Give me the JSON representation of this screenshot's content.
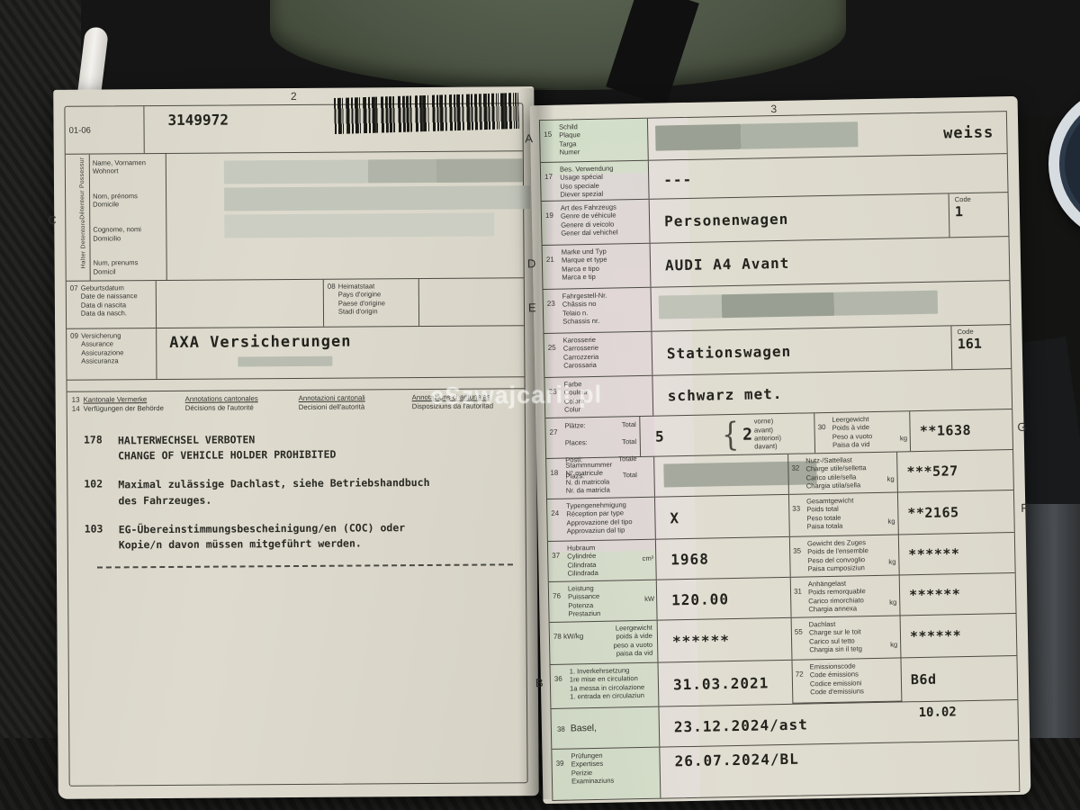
{
  "scene": {
    "paper_color": "#dcd9cc",
    "leather_color": "#4d5646",
    "redaction_color": "#a9ada1",
    "background_color": "#141413"
  },
  "watermark_text": "eSzwajcarii.pl",
  "left_page": {
    "page_number": "2",
    "header": {
      "code_range": "01-06",
      "serial": "3149972"
    },
    "holder": {
      "marker": "C",
      "vertical_top": "Détenteur  Possessur",
      "vertical_bottom": "Halter  Detentore",
      "labels": [
        [
          "Name, Vornamen",
          "Wohnort"
        ],
        [
          "Nom, prénoms",
          "Domicile"
        ],
        [
          "Cognome, nomi",
          "Domicilio"
        ],
        [
          "Num, prenums",
          "Domicil"
        ]
      ]
    },
    "field07": {
      "num": "07",
      "labels": [
        "Geburtsdatum",
        "Date de naissance",
        "Data di nascita",
        "Data da nasch."
      ]
    },
    "field08": {
      "num": "08",
      "labels": [
        "Heimatstaat",
        "Pays d'origine",
        "Paese d'origine",
        "Stadi d'origin"
      ]
    },
    "field09": {
      "num": "09",
      "labels": [
        "Versicherung",
        "Assurance",
        "Assicurazione",
        "Assicuranza"
      ],
      "value": "AXA Versicherungen"
    },
    "cantonal": {
      "col1": {
        "row1_num": "13",
        "row1_text": "Kantonale Vermerke",
        "row2_num": "14",
        "row2_text": "Verfügungen der Behörde"
      },
      "col2": [
        "Annotations cantonales",
        "Décisions de l'autorité"
      ],
      "col3": [
        "Annotazioni cantonali",
        "Decisioni dell'autorità"
      ],
      "col4": [
        "Annotaziuns chantunalas",
        "Disposiziuns da l'autoritad"
      ]
    },
    "notes": [
      {
        "num": "178",
        "lines": [
          "HALTERWECHSEL VERBOTEN",
          "CHANGE OF VEHICLE HOLDER PROHIBITED"
        ]
      },
      {
        "num": "102",
        "lines": [
          "Maximal zulässige Dachlast, siehe Betriebshandbuch",
          "des Fahrzeuges."
        ]
      },
      {
        "num": "103",
        "lines": [
          "EG-Übereinstimmungsbescheinigung/en (COC) oder",
          "Kopie/n davon müssen mitgeführt werden."
        ]
      }
    ]
  },
  "right_page": {
    "page_number": "3",
    "rows": {
      "r15": {
        "marker": "A",
        "num": "15",
        "labels": [
          "Schild",
          "Plaque",
          "Targa",
          "Numer"
        ],
        "value": "weiss"
      },
      "r17": {
        "num": "17",
        "labels": [
          "Bes. Verwendung",
          "Usage spécial",
          "Uso speciale",
          "Diever spezial"
        ],
        "value": "---"
      },
      "r19": {
        "num": "19",
        "labels": [
          "Art des Fahrzeugs",
          "Genre de véhicule",
          "Genere di veicolo",
          "Gener dal vehichel"
        ],
        "value": "Personenwagen",
        "code_label": "Code",
        "code": "1"
      },
      "r21": {
        "marker": "D",
        "num": "21",
        "labels": [
          "Marke und Typ",
          "Marque et type",
          "Marca e tipo",
          "Marca e tip"
        ],
        "value": "AUDI A4 Avant"
      },
      "r23": {
        "marker": "E",
        "num": "23",
        "labels": [
          "Fahrgestell-Nr.",
          "Châssis no",
          "Telaio n.",
          "Schassis nr."
        ]
      },
      "r25": {
        "num": "25",
        "labels": [
          "Karosserie",
          "Carrosserie",
          "Carrozzeria",
          "Carossaria"
        ],
        "value": "Stationswagen",
        "code_label": "Code",
        "code": "161"
      },
      "r26": {
        "num": "26",
        "labels": [
          "Farbe",
          "Couleur",
          "Colore",
          "Colur"
        ],
        "value": "schwarz met."
      },
      "r27": {
        "marker_right": "G",
        "num": "27",
        "labels_left": [
          "Plätze:",
          "Places:",
          "Posti:",
          "Plazs:"
        ],
        "labels_right": [
          "Total",
          "Total",
          "Totale",
          "Total"
        ],
        "value": "5",
        "brace": "{",
        "front_value": "2",
        "front_labels": [
          "vorne)",
          "avant)",
          "anteriori)",
          "davant)"
        ],
        "sub": {
          "num": "30",
          "labels": [
            "Leergewicht",
            "Poids à vide",
            "Peso a vuoto",
            "Paisa da vid"
          ],
          "unit": "kg",
          "value": "**1638"
        }
      },
      "r18": {
        "num": "18",
        "labels": [
          "Stammnummer",
          "N° matricule",
          "N. di matricola",
          "Nr. da matricla"
        ],
        "sub": {
          "num": "32",
          "labels": [
            "Nutz-/Sattellast",
            "Charge utile/selletta",
            "Carico utile/sella",
            "Chargia utila/sella"
          ],
          "unit": "kg",
          "value": "***527"
        }
      },
      "r24": {
        "marker_right": "F",
        "num": "24",
        "labels": [
          "Typengenehmigung",
          "Réception par type",
          "Approvazione del tipo",
          "Approvaziun dal tip"
        ],
        "value": "X",
        "sub": {
          "num": "33",
          "labels": [
            "Gesamtgewicht",
            "Poids total",
            "Peso totale",
            "Paisa totala"
          ],
          "unit": "kg",
          "value": "**2165"
        }
      },
      "r37": {
        "num": "37",
        "labels": [
          "Hubraum",
          "Cylindrée",
          "Cilindrata",
          "Cilindrada"
        ],
        "unit": "cm³",
        "value": "1968",
        "sub": {
          "num": "35",
          "labels": [
            "Gewicht des Zuges",
            "Poids de l'ensemble",
            "Peso del convoglio",
            "Paisa cumposiziun"
          ],
          "unit": "kg",
          "value": "******"
        }
      },
      "r76": {
        "num": "76",
        "labels": [
          "Leistung",
          "Puissance",
          "Potenza",
          "Prestaziun"
        ],
        "unit": "kW",
        "value": "120.00",
        "sub": {
          "num": "31",
          "labels": [
            "Anhängelast",
            "Poids remorquable",
            "Carico rimorchiato",
            "Chargia annexa"
          ],
          "unit": "kg",
          "value": "******"
        }
      },
      "r78": {
        "num": "78 kW/kg",
        "labels": [
          "Leergewicht",
          "poids à vide",
          "peso a vuoto",
          "paisa da vid"
        ],
        "value": "******",
        "sub": {
          "num": "55",
          "labels": [
            "Dachlast",
            "Charge sur le toit",
            "Carico sul tetto",
            "Chargia sin il tetg"
          ],
          "unit": "kg",
          "value": "******"
        }
      },
      "r36": {
        "marker": "B",
        "num": "36",
        "labels": [
          "1. Inverkehrsetzung",
          "1re mise en circulation",
          "1a messa in circolazione",
          "1. entrada en circulaziun"
        ],
        "value": "31.03.2021",
        "sub": {
          "num": "72",
          "labels": [
            "Emissionscode",
            "Code émissions",
            "Codice emissioni",
            "Code d'emissiuns"
          ],
          "value": "B6d"
        }
      },
      "r38": {
        "num": "38",
        "label": "Basel,",
        "value": "23.12.2024/ast",
        "extra": "10.02"
      },
      "r39": {
        "num": "39",
        "labels": [
          "Prüfungen",
          "Expertises",
          "Perizie",
          "Examinaziuns"
        ],
        "value": "26.07.2024/BL"
      }
    }
  }
}
